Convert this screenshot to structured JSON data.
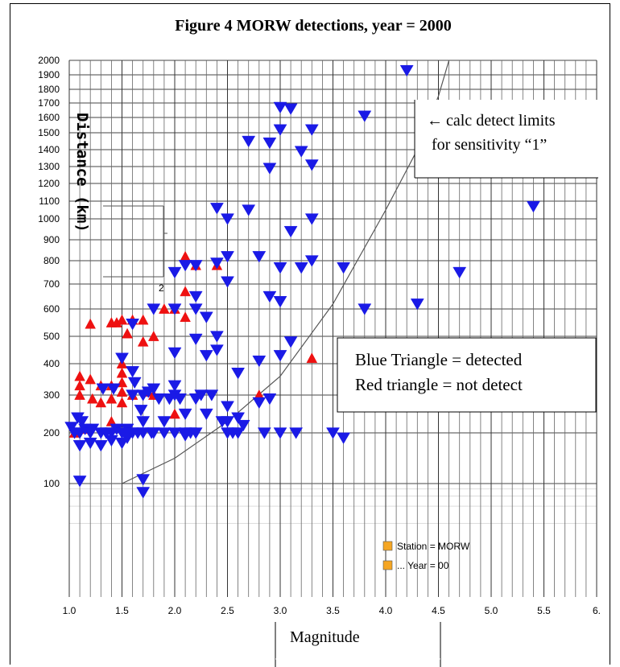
{
  "chart_data": {
    "type": "scatter",
    "title": "Figure 4 MORW detections, year = 2000",
    "xlabel": "Magnitude",
    "ylabel": "Distance (km)",
    "x_ticks": [
      "1.0",
      "1.5",
      "2.0",
      "2.5",
      "3.0",
      "3.5",
      "4.0",
      "4.5",
      "5.0",
      "5.5",
      "6."
    ],
    "y_ticks": [
      "100",
      "200",
      "300",
      "400",
      "500",
      "600",
      "700",
      "800",
      "900",
      "1000",
      "1100",
      "1200",
      "1300",
      "1400",
      "1500",
      "1600",
      "1700",
      "1800",
      "1900",
      "2000"
    ],
    "xlim": [
      1.0,
      6.0
    ],
    "ylim": [
      0,
      2000
    ],
    "y_scale": "log-like (non-linear, ticks as printed)",
    "grid": true,
    "series": [
      {
        "name": "Blue Triangle = detected",
        "color": "#1a1ae6",
        "marker": "triangle-down",
        "points": [
          [
            1.02,
            215
          ],
          [
            1.05,
            200
          ],
          [
            1.08,
            240
          ],
          [
            1.1,
            200
          ],
          [
            1.1,
            175
          ],
          [
            1.12,
            230
          ],
          [
            1.1,
            105
          ],
          [
            1.15,
            210
          ],
          [
            1.2,
            200
          ],
          [
            1.2,
            180
          ],
          [
            1.22,
            210
          ],
          [
            1.3,
            175
          ],
          [
            1.3,
            200
          ],
          [
            1.32,
            320
          ],
          [
            1.35,
            200
          ],
          [
            1.4,
            185
          ],
          [
            1.4,
            200
          ],
          [
            1.42,
            320
          ],
          [
            1.45,
            210
          ],
          [
            1.5,
            420
          ],
          [
            1.5,
            200
          ],
          [
            1.5,
            180
          ],
          [
            1.55,
            210
          ],
          [
            1.55,
            190
          ],
          [
            1.6,
            545
          ],
          [
            1.6,
            375
          ],
          [
            1.6,
            300
          ],
          [
            1.6,
            200
          ],
          [
            1.62,
            340
          ],
          [
            1.65,
            200
          ],
          [
            1.68,
            260
          ],
          [
            1.7,
            300
          ],
          [
            1.7,
            230
          ],
          [
            1.7,
            200
          ],
          [
            1.7,
            108
          ],
          [
            1.7,
            70
          ],
          [
            1.75,
            310
          ],
          [
            1.78,
            200
          ],
          [
            1.8,
            600
          ],
          [
            1.8,
            320
          ],
          [
            1.8,
            200
          ],
          [
            1.85,
            290
          ],
          [
            1.9,
            230
          ],
          [
            1.9,
            200
          ],
          [
            1.95,
            290
          ],
          [
            2.0,
            750
          ],
          [
            2.0,
            600
          ],
          [
            2.0,
            440
          ],
          [
            2.0,
            330
          ],
          [
            2.0,
            300
          ],
          [
            2.0,
            200
          ],
          [
            2.05,
            290
          ],
          [
            2.1,
            780
          ],
          [
            2.1,
            250
          ],
          [
            2.1,
            200
          ],
          [
            2.1,
            195
          ],
          [
            2.15,
            200
          ],
          [
            2.2,
            780
          ],
          [
            2.2,
            650
          ],
          [
            2.2,
            600
          ],
          [
            2.2,
            490
          ],
          [
            2.2,
            290
          ],
          [
            2.2,
            200
          ],
          [
            2.25,
            300
          ],
          [
            2.3,
            570
          ],
          [
            2.3,
            430
          ],
          [
            2.3,
            250
          ],
          [
            2.35,
            300
          ],
          [
            2.4,
            1060
          ],
          [
            2.4,
            790
          ],
          [
            2.4,
            500
          ],
          [
            2.4,
            450
          ],
          [
            2.45,
            230
          ],
          [
            2.5,
            1000
          ],
          [
            2.5,
            820
          ],
          [
            2.5,
            710
          ],
          [
            2.5,
            270
          ],
          [
            2.5,
            230
          ],
          [
            2.5,
            200
          ],
          [
            2.55,
            200
          ],
          [
            2.6,
            370
          ],
          [
            2.6,
            240
          ],
          [
            2.6,
            200
          ],
          [
            2.65,
            220
          ],
          [
            2.7,
            1450
          ],
          [
            2.7,
            1050
          ],
          [
            2.8,
            820
          ],
          [
            2.8,
            410
          ],
          [
            2.8,
            280
          ],
          [
            2.85,
            200
          ],
          [
            2.9,
            1440
          ],
          [
            2.9,
            1290
          ],
          [
            2.9,
            650
          ],
          [
            2.9,
            290
          ],
          [
            3.0,
            1670
          ],
          [
            3.0,
            1520
          ],
          [
            3.0,
            770
          ],
          [
            3.0,
            630
          ],
          [
            3.0,
            430
          ],
          [
            3.0,
            200
          ],
          [
            3.1,
            1660
          ],
          [
            3.1,
            940
          ],
          [
            3.1,
            480
          ],
          [
            3.15,
            200
          ],
          [
            3.2,
            1390
          ],
          [
            3.2,
            770
          ],
          [
            3.3,
            1520
          ],
          [
            3.3,
            1310
          ],
          [
            3.3,
            1000
          ],
          [
            3.3,
            800
          ],
          [
            3.5,
            200
          ],
          [
            3.6,
            770
          ],
          [
            3.6,
            190
          ],
          [
            3.8,
            1610
          ],
          [
            3.8,
            600
          ],
          [
            4.2,
            1930
          ],
          [
            4.3,
            620
          ],
          [
            4.7,
            750
          ],
          [
            5.4,
            1070
          ]
        ]
      },
      {
        "name": "Red triangle = not detect",
        "color": "#ee1111",
        "marker": "triangle-up",
        "points": [
          [
            1.05,
            200
          ],
          [
            1.1,
            360
          ],
          [
            1.1,
            330
          ],
          [
            1.1,
            300
          ],
          [
            1.15,
            210
          ],
          [
            1.2,
            545
          ],
          [
            1.2,
            350
          ],
          [
            1.22,
            290
          ],
          [
            1.3,
            330
          ],
          [
            1.3,
            280
          ],
          [
            1.4,
            550
          ],
          [
            1.4,
            330
          ],
          [
            1.4,
            290
          ],
          [
            1.4,
            230
          ],
          [
            1.45,
            550
          ],
          [
            1.5,
            560
          ],
          [
            1.5,
            400
          ],
          [
            1.5,
            370
          ],
          [
            1.5,
            340
          ],
          [
            1.5,
            310
          ],
          [
            1.5,
            280
          ],
          [
            1.55,
            510
          ],
          [
            1.6,
            560
          ],
          [
            1.6,
            300
          ],
          [
            1.7,
            560
          ],
          [
            1.7,
            480
          ],
          [
            1.75,
            310
          ],
          [
            1.8,
            500
          ],
          [
            1.8,
            300
          ],
          [
            1.9,
            600
          ],
          [
            2.0,
            600
          ],
          [
            2.0,
            250
          ],
          [
            2.1,
            820
          ],
          [
            2.1,
            670
          ],
          [
            2.1,
            570
          ],
          [
            2.2,
            780
          ],
          [
            2.4,
            780
          ],
          [
            2.8,
            300
          ],
          [
            3.3,
            420
          ]
        ]
      }
    ],
    "curve": {
      "label": "calc detect limits for sensitivity “1”",
      "points": [
        [
          1.5,
          100
        ],
        [
          2.0,
          150
        ],
        [
          2.5,
          230
        ],
        [
          3.0,
          360
        ],
        [
          3.5,
          620
        ],
        [
          4.0,
          1050
        ],
        [
          4.3,
          1400
        ],
        [
          4.5,
          1750
        ],
        [
          4.6,
          2000
        ]
      ]
    },
    "annotations": {
      "curve_note_line1": "calc detect limits",
      "curve_note_line2": "for sensitivity “1”",
      "legend_line1": "Blue Triangle = detected",
      "legend_line2": "Red triangle = not detect",
      "station_legend": "Station = MORW",
      "year_legend": "... Year = 00",
      "axis_fragment": "2"
    },
    "colors": {
      "blue": "#1a1ae6",
      "red": "#ee1111",
      "orange": "#f5a623"
    }
  }
}
